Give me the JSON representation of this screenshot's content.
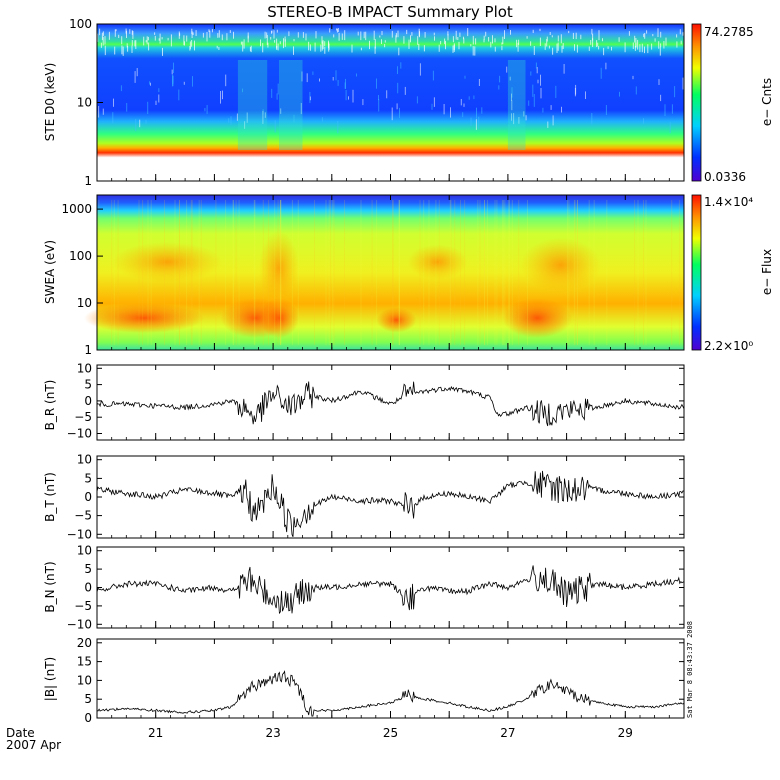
{
  "title": "STEREO-B IMPACT Summary Plot",
  "date_label": "Date",
  "date_value": "2007 Apr",
  "timestamp": "Sat Mar 8 08:43:37 2008",
  "colors": {
    "axis": "#000000",
    "trace": "#000000"
  },
  "chart_data": [
    {
      "type": "heatmap",
      "ylabel": "STE D0 (keV)",
      "yscale": "log",
      "ylim": [
        1,
        100
      ],
      "yticks": [
        "1",
        "10",
        "100"
      ],
      "colorbar": {
        "label": "e− Cnts",
        "max": "74.2785",
        "min": "0.0336"
      },
      "x_range": [
        "2007-04-20",
        "2007-04-30"
      ]
    },
    {
      "type": "heatmap",
      "ylabel": "SWEA (eV)",
      "yscale": "log",
      "ylim": [
        1,
        2000
      ],
      "yticks": [
        "1",
        "10",
        "100",
        "1000"
      ],
      "colorbar": {
        "label": "e− Flux",
        "max": "1.4×10⁴",
        "min": "2.2×10⁰"
      },
      "x_range": [
        "2007-04-20",
        "2007-04-30"
      ]
    },
    {
      "type": "line",
      "ylabel": "B_R (nT)",
      "ylim": [
        -12,
        11
      ],
      "yticks": [
        "10",
        "5",
        "0",
        "−5",
        "−10"
      ],
      "x": [
        20.0,
        20.5,
        21.0,
        21.5,
        22.0,
        22.3,
        22.5,
        22.7,
        23.0,
        23.3,
        23.6,
        24.0,
        24.5,
        25.0,
        25.3,
        25.6,
        26.0,
        26.3,
        26.7,
        26.8,
        27.0,
        27.3,
        27.6,
        28.0,
        28.5,
        29.0,
        29.5,
        30.0
      ],
      "y": [
        -1,
        -1,
        -1.5,
        -2,
        -1,
        0,
        -2,
        -5,
        2,
        -2,
        2,
        0,
        3,
        -1,
        2,
        3,
        4,
        3,
        1,
        -4,
        -4,
        -2,
        -4,
        -3,
        -2,
        0,
        -1,
        -2
      ]
    },
    {
      "type": "line",
      "ylabel": "B_T (nT)",
      "ylim": [
        -11,
        11
      ],
      "yticks": [
        "10",
        "5",
        "0",
        "−5",
        "−10"
      ],
      "x": [
        20.0,
        20.5,
        21.0,
        21.5,
        22.0,
        22.3,
        22.5,
        22.7,
        23.0,
        23.3,
        23.6,
        24.0,
        24.5,
        25.0,
        25.3,
        25.6,
        26.0,
        26.3,
        26.7,
        27.0,
        27.3,
        27.6,
        28.0,
        28.5,
        29.0,
        29.5,
        30.0
      ],
      "y": [
        2,
        1,
        0,
        2,
        1,
        0,
        2,
        -5,
        3,
        -8,
        -3,
        0,
        -1,
        -1,
        -3,
        0,
        1,
        0,
        -1,
        3,
        4,
        3,
        2,
        2,
        1,
        0,
        1
      ]
    },
    {
      "type": "line",
      "ylabel": "B_N (nT)",
      "ylim": [
        -11,
        11
      ],
      "yticks": [
        "10",
        "5",
        "0",
        "−5",
        "−10"
      ],
      "x": [
        20.0,
        20.5,
        21.0,
        21.5,
        22.0,
        22.3,
        22.6,
        23.0,
        23.3,
        23.6,
        24.0,
        24.5,
        25.0,
        25.3,
        25.6,
        26.0,
        26.3,
        26.7,
        27.0,
        27.3,
        27.6,
        28.0,
        28.5,
        29.0,
        29.5,
        30.0
      ],
      "y": [
        -1,
        1,
        1,
        -1,
        0,
        -1,
        2,
        -3,
        -4,
        0,
        0,
        1,
        1,
        -3,
        0,
        -1,
        -1,
        1,
        0,
        2,
        3,
        -2,
        1,
        0,
        1,
        2
      ]
    },
    {
      "type": "line",
      "ylabel": "|B| (nT)",
      "ylim": [
        0,
        21
      ],
      "yticks": [
        "20",
        "15",
        "10",
        "5",
        "0"
      ],
      "x": [
        20.0,
        20.5,
        21.0,
        21.5,
        22.0,
        22.3,
        22.6,
        22.9,
        23.2,
        23.4,
        23.6,
        24.0,
        24.5,
        25.0,
        25.3,
        25.6,
        26.0,
        26.3,
        26.7,
        27.0,
        27.3,
        27.6,
        27.8,
        28.0,
        28.3,
        28.6,
        29.0,
        29.5,
        30.0
      ],
      "y": [
        2,
        2.5,
        2,
        1.5,
        2,
        3,
        8,
        10,
        11,
        9,
        2,
        2,
        3,
        4,
        6,
        5,
        4,
        3,
        2,
        3,
        5,
        8,
        9,
        7,
        5,
        4,
        3,
        3,
        4
      ]
    }
  ],
  "x_axis": {
    "ticks": [
      "21",
      "23",
      "25",
      "27",
      "29"
    ],
    "tick_values": [
      21,
      23,
      25,
      27,
      29
    ],
    "range": [
      20,
      30
    ]
  }
}
